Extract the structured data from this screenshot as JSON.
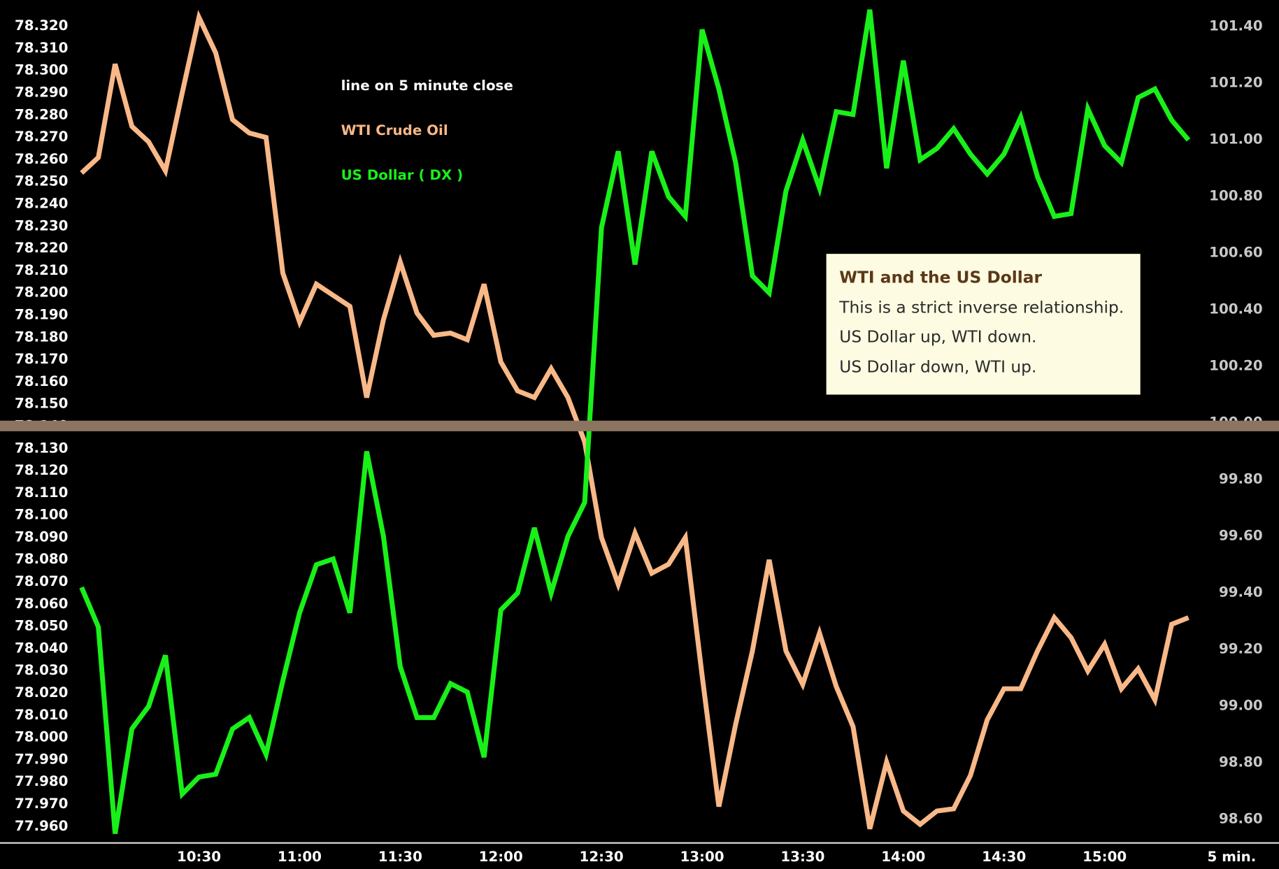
{
  "chart_data": {
    "type": "line",
    "subtitle": "line on 5 minute close",
    "xlabel": "5 min.",
    "annotation": {
      "title": "WTI and the US Dollar",
      "lines": [
        "This is a strict inverse relationship.",
        "US Dollar up, WTI down.",
        "US Dollar down, WTI up."
      ]
    },
    "categories": [
      null,
      null,
      null,
      null,
      null,
      null,
      null,
      "10:30",
      null,
      null,
      null,
      null,
      null,
      "11:00",
      null,
      null,
      null,
      null,
      null,
      "11:30",
      null,
      null,
      null,
      null,
      null,
      "12:00",
      null,
      null,
      null,
      null,
      null,
      "12:30",
      null,
      null,
      null,
      null,
      null,
      "13:00",
      null,
      null,
      null,
      null,
      null,
      "13:30",
      null,
      null,
      null,
      null,
      null,
      "14:00",
      null,
      null,
      null,
      null,
      null,
      "14:30",
      null,
      null,
      null,
      null,
      null,
      "15:00",
      null,
      null,
      null,
      null,
      null
    ],
    "series": [
      {
        "name": "WTI Crude Oil",
        "color": "#f9b887",
        "axis": "y",
        "values": [
          78.254,
          78.261,
          78.303,
          78.275,
          78.268,
          78.255,
          78.29,
          78.324,
          78.308,
          78.278,
          78.272,
          78.27,
          78.209,
          78.187,
          78.204,
          78.199,
          78.194,
          78.153,
          78.188,
          78.214,
          78.191,
          78.181,
          78.182,
          78.179,
          78.204,
          78.169,
          78.156,
          78.153,
          78.166,
          78.153,
          78.133,
          78.09,
          78.069,
          78.092,
          78.074,
          78.078,
          78.09,
          78.028,
          77.969,
          78.006,
          78.039,
          78.08,
          78.039,
          78.024,
          78.047,
          78.023,
          78.005,
          77.959,
          77.989,
          77.967,
          77.961,
          77.967,
          77.968,
          77.983,
          78.008,
          78.022,
          78.022,
          78.039,
          78.054,
          78.045,
          78.03,
          78.042,
          78.022,
          78.031,
          78.017,
          78.051,
          78.054
        ]
      },
      {
        "name": "US Dollar ( DX )",
        "color": "#19f019",
        "axis": "y2",
        "values": [
          99.42,
          99.28,
          98.55,
          98.92,
          99.0,
          99.18,
          98.69,
          98.75,
          98.76,
          98.92,
          98.96,
          98.83,
          99.09,
          99.33,
          99.5,
          99.52,
          99.33,
          99.9,
          99.6,
          99.14,
          98.96,
          98.96,
          99.08,
          99.05,
          98.82,
          99.34,
          99.4,
          99.63,
          99.4,
          99.6,
          99.72,
          100.69,
          100.96,
          100.56,
          100.96,
          100.8,
          100.73,
          101.39,
          101.18,
          100.92,
          100.52,
          100.46,
          100.82,
          101.0,
          100.83,
          101.1,
          101.09,
          101.46,
          100.9,
          101.28,
          100.93,
          100.97,
          101.04,
          100.95,
          100.88,
          100.95,
          101.08,
          100.87,
          100.73,
          100.74,
          101.11,
          100.98,
          100.92,
          101.15,
          101.18,
          101.07,
          101.0
        ]
      }
    ],
    "ylim": [
      77.953,
      78.33
    ],
    "yticks": [
      {
        "value": 78.32,
        "label": "78.320"
      },
      {
        "value": 78.31,
        "label": "78.310"
      },
      {
        "value": 78.3,
        "label": "78.300"
      },
      {
        "value": 78.29,
        "label": "78.290"
      },
      {
        "value": 78.28,
        "label": "78.280"
      },
      {
        "value": 78.27,
        "label": "78.270"
      },
      {
        "value": 78.26,
        "label": "78.260"
      },
      {
        "value": 78.25,
        "label": "78.250"
      },
      {
        "value": 78.24,
        "label": "78.240"
      },
      {
        "value": 78.23,
        "label": "78.230"
      },
      {
        "value": 78.22,
        "label": "78.220"
      },
      {
        "value": 78.21,
        "label": "78.210"
      },
      {
        "value": 78.2,
        "label": "78.200"
      },
      {
        "value": 78.19,
        "label": "78.190"
      },
      {
        "value": 78.18,
        "label": "78.180"
      },
      {
        "value": 78.17,
        "label": "78.170"
      },
      {
        "value": 78.16,
        "label": "78.160"
      },
      {
        "value": 78.15,
        "label": "78.150"
      },
      {
        "value": 78.14,
        "label": "78.140"
      },
      {
        "value": 78.13,
        "label": "78.130"
      },
      {
        "value": 78.12,
        "label": "78.120"
      },
      {
        "value": 78.11,
        "label": "78.110"
      },
      {
        "value": 78.1,
        "label": "78.100"
      },
      {
        "value": 78.09,
        "label": "78.090"
      },
      {
        "value": 78.08,
        "label": "78.080"
      },
      {
        "value": 78.07,
        "label": "78.070"
      },
      {
        "value": 78.06,
        "label": "78.060"
      },
      {
        "value": 78.05,
        "label": "78.050"
      },
      {
        "value": 78.04,
        "label": "78.040"
      },
      {
        "value": 78.03,
        "label": "78.030"
      },
      {
        "value": 78.02,
        "label": "78.020"
      },
      {
        "value": 78.01,
        "label": "78.010"
      },
      {
        "value": 78.0,
        "label": "78.000"
      },
      {
        "value": 77.99,
        "label": "77.990"
      },
      {
        "value": 77.98,
        "label": "77.980"
      },
      {
        "value": 77.97,
        "label": "77.970"
      },
      {
        "value": 77.96,
        "label": "77.960"
      }
    ],
    "y2lim": [
      98.52,
      101.48
    ],
    "y2ticks": [
      {
        "value": 101.4,
        "label": "101.40"
      },
      {
        "value": 101.2,
        "label": "101.20"
      },
      {
        "value": 101.0,
        "label": "101.00"
      },
      {
        "value": 100.8,
        "label": "100.80"
      },
      {
        "value": 100.6,
        "label": "100.60"
      },
      {
        "value": 100.4,
        "label": "100.40"
      },
      {
        "value": 100.2,
        "label": "100.20"
      },
      {
        "value": 100.0,
        "label": "100.00"
      },
      {
        "value": 99.8,
        "label": "99.80"
      },
      {
        "value": 99.6,
        "label": "99.60"
      },
      {
        "value": 99.4,
        "label": "99.40"
      },
      {
        "value": 99.2,
        "label": "99.20"
      },
      {
        "value": 99.0,
        "label": "99.00"
      },
      {
        "value": 98.8,
        "label": "98.80"
      },
      {
        "value": 98.6,
        "label": "98.60"
      }
    ],
    "grid": false
  }
}
